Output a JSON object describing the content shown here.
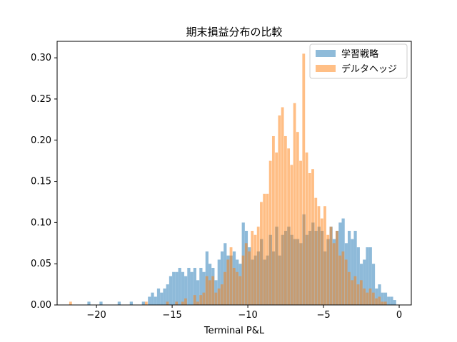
{
  "chart_data": {
    "type": "histogram",
    "title": "期末損益分布の比較",
    "xlabel": "Terminal P&L",
    "ylabel": "",
    "xlim": [
      -22.6,
      0.8
    ],
    "ylim": [
      0,
      0.32
    ],
    "xticks": [
      -20,
      -15,
      -10,
      -5,
      0
    ],
    "xtick_labels": [
      "−20",
      "−15",
      "−10",
      "−5",
      "0"
    ],
    "yticks": [
      0.0,
      0.05,
      0.1,
      0.15,
      0.2,
      0.25,
      0.3
    ],
    "ytick_labels": [
      "0.00",
      "0.05",
      "0.10",
      "0.15",
      "0.20",
      "0.25",
      "0.30"
    ],
    "grid": false,
    "legend_position": "top-right",
    "alpha": 0.5,
    "series": [
      {
        "name": "学習戦略",
        "color": "#1f77b4",
        "bin_width": 0.2,
        "bins": [
          [
            -20.6,
            0.004
          ],
          [
            -19.8,
            0.004
          ],
          [
            -18.6,
            0.004
          ],
          [
            -17.8,
            0.004
          ],
          [
            -17.0,
            0.004
          ],
          [
            -16.6,
            0.01
          ],
          [
            -16.4,
            0.015
          ],
          [
            -16.2,
            0.01
          ],
          [
            -16.0,
            0.02
          ],
          [
            -15.8,
            0.015
          ],
          [
            -15.6,
            0.02
          ],
          [
            -15.4,
            0.025
          ],
          [
            -15.2,
            0.035
          ],
          [
            -15.0,
            0.04
          ],
          [
            -14.8,
            0.04
          ],
          [
            -14.6,
            0.045
          ],
          [
            -14.4,
            0.04
          ],
          [
            -14.2,
            0.035
          ],
          [
            -14.0,
            0.045
          ],
          [
            -13.8,
            0.04
          ],
          [
            -13.6,
            0.045
          ],
          [
            -13.4,
            0.03
          ],
          [
            -13.2,
            0.045
          ],
          [
            -13.0,
            0.04
          ],
          [
            -12.8,
            0.065
          ],
          [
            -12.6,
            0.05
          ],
          [
            -12.4,
            0.045
          ],
          [
            -12.2,
            0.03
          ],
          [
            -12.0,
            0.055
          ],
          [
            -11.8,
            0.065
          ],
          [
            -11.6,
            0.075
          ],
          [
            -11.4,
            0.06
          ],
          [
            -11.2,
            0.06
          ],
          [
            -11.0,
            0.065
          ],
          [
            -10.8,
            0.055
          ],
          [
            -10.6,
            0.05
          ],
          [
            -10.4,
            0.1
          ],
          [
            -10.2,
            0.09
          ],
          [
            -10.0,
            0.07
          ],
          [
            -9.8,
            0.055
          ],
          [
            -9.6,
            0.06
          ],
          [
            -9.4,
            0.065
          ],
          [
            -9.2,
            0.08
          ],
          [
            -9.0,
            0.055
          ],
          [
            -8.8,
            0.06
          ],
          [
            -8.6,
            0.085
          ],
          [
            -8.4,
            0.065
          ],
          [
            -8.2,
            0.095
          ],
          [
            -8.0,
            0.06
          ],
          [
            -7.8,
            0.085
          ],
          [
            -7.6,
            0.09
          ],
          [
            -7.4,
            0.095
          ],
          [
            -7.2,
            0.085
          ],
          [
            -7.0,
            0.08
          ],
          [
            -6.8,
            0.08
          ],
          [
            -6.6,
            0.075
          ],
          [
            -6.4,
            0.11
          ],
          [
            -6.2,
            0.085
          ],
          [
            -6.0,
            0.09
          ],
          [
            -5.8,
            0.1
          ],
          [
            -5.6,
            0.09
          ],
          [
            -5.4,
            0.095
          ],
          [
            -5.2,
            0.09
          ],
          [
            -5.0,
            0.065
          ],
          [
            -4.8,
            0.08
          ],
          [
            -4.6,
            0.095
          ],
          [
            -4.4,
            0.08
          ],
          [
            -4.2,
            0.09
          ],
          [
            -4.0,
            0.1
          ],
          [
            -3.8,
            0.105
          ],
          [
            -3.6,
            0.075
          ],
          [
            -3.4,
            0.09
          ],
          [
            -3.2,
            0.08
          ],
          [
            -3.0,
            0.09
          ],
          [
            -2.8,
            0.07
          ],
          [
            -2.6,
            0.05
          ],
          [
            -2.4,
            0.055
          ],
          [
            -2.2,
            0.07
          ],
          [
            -2.0,
            0.07
          ],
          [
            -1.8,
            0.05
          ],
          [
            -1.6,
            0.02
          ],
          [
            -1.4,
            0.025
          ],
          [
            -1.2,
            0.015
          ],
          [
            -1.0,
            0.015
          ],
          [
            -0.8,
            0.01
          ],
          [
            -0.6,
            0.01
          ],
          [
            -0.4,
            0.006
          ]
        ]
      },
      {
        "name": "デルタヘッジ",
        "color": "#ff7f0e",
        "bin_width": 0.18,
        "bins": [
          [
            -21.8,
            0.004
          ],
          [
            -16.8,
            0.004
          ],
          [
            -15.4,
            0.004
          ],
          [
            -14.8,
            0.004
          ],
          [
            -14.4,
            0.004
          ],
          [
            -14.2,
            0.008
          ],
          [
            -13.6,
            0.012
          ],
          [
            -13.4,
            0.004
          ],
          [
            -13.2,
            0.012
          ],
          [
            -13.0,
            0.015
          ],
          [
            -12.8,
            0.035
          ],
          [
            -12.6,
            0.03
          ],
          [
            -12.4,
            0.035
          ],
          [
            -12.2,
            0.015
          ],
          [
            -12.0,
            0.02
          ],
          [
            -11.8,
            0.025
          ],
          [
            -11.6,
            0.04
          ],
          [
            -11.4,
            0.055
          ],
          [
            -11.2,
            0.07
          ],
          [
            -11.0,
            0.045
          ],
          [
            -10.8,
            0.04
          ],
          [
            -10.6,
            0.035
          ],
          [
            -10.4,
            0.06
          ],
          [
            -10.2,
            0.075
          ],
          [
            -10.0,
            0.065
          ],
          [
            -9.8,
            0.09
          ],
          [
            -9.6,
            0.085
          ],
          [
            -9.4,
            0.095
          ],
          [
            -9.2,
            0.125
          ],
          [
            -9.0,
            0.135
          ],
          [
            -8.8,
            0.135
          ],
          [
            -8.6,
            0.175
          ],
          [
            -8.4,
            0.205
          ],
          [
            -8.2,
            0.185
          ],
          [
            -8.0,
            0.23
          ],
          [
            -7.8,
            0.24
          ],
          [
            -7.6,
            0.205
          ],
          [
            -7.4,
            0.19
          ],
          [
            -7.2,
            0.17
          ],
          [
            -7.0,
            0.245
          ],
          [
            -6.8,
            0.21
          ],
          [
            -6.6,
            0.175
          ],
          [
            -6.4,
            0.305
          ],
          [
            -6.2,
            0.185
          ],
          [
            -6.0,
            0.16
          ],
          [
            -5.8,
            0.165
          ],
          [
            -5.6,
            0.13
          ],
          [
            -5.4,
            0.12
          ],
          [
            -5.2,
            0.105
          ],
          [
            -5.0,
            0.12
          ],
          [
            -4.8,
            0.085
          ],
          [
            -4.6,
            0.095
          ],
          [
            -4.4,
            0.075
          ],
          [
            -4.2,
            0.09
          ],
          [
            -4.0,
            0.06
          ],
          [
            -3.8,
            0.065
          ],
          [
            -3.6,
            0.055
          ],
          [
            -3.4,
            0.04
          ],
          [
            -3.2,
            0.03
          ],
          [
            -3.0,
            0.035
          ],
          [
            -2.8,
            0.025
          ],
          [
            -2.6,
            0.03
          ],
          [
            -2.4,
            0.02
          ],
          [
            -2.2,
            0.015
          ],
          [
            -2.0,
            0.02
          ],
          [
            -1.8,
            0.015
          ],
          [
            -1.6,
            0.008
          ],
          [
            -1.4,
            0.01
          ],
          [
            -1.2,
            0.004
          ],
          [
            -1.0,
            0.004
          ]
        ]
      }
    ]
  }
}
